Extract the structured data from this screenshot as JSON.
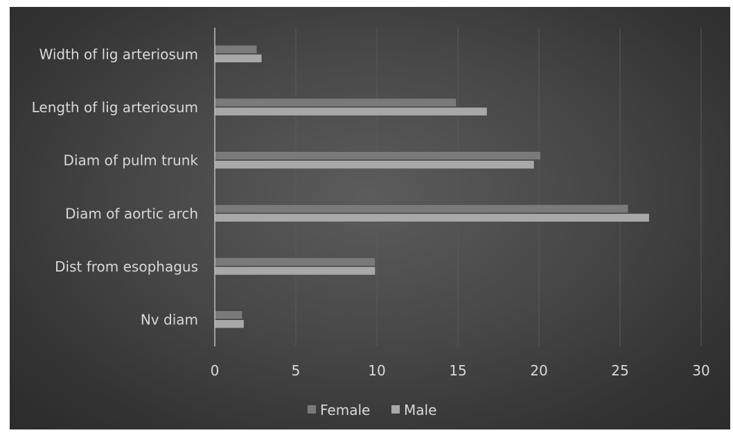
{
  "chart_data": {
    "type": "bar",
    "orientation": "horizontal",
    "categories": [
      "Nv diam",
      "Dist from esophagus",
      "Diam of aortic arch",
      "Diam of pulm trunk",
      "Length of lig arteriosum",
      "Width of lig arteriosum"
    ],
    "series": [
      {
        "name": "Female",
        "values": [
          1.7,
          9.9,
          25.5,
          20.1,
          14.9,
          2.6
        ],
        "color": "#7a7a7a"
      },
      {
        "name": "Male",
        "values": [
          1.8,
          9.9,
          26.8,
          19.7,
          16.8,
          2.9
        ],
        "color": "#a8a8a8"
      }
    ],
    "xlim": [
      0,
      30
    ],
    "xticks": [
      0,
      5,
      10,
      15,
      20,
      25,
      30
    ],
    "title": "",
    "xlabel": "",
    "ylabel": "",
    "grid": "vertical",
    "legend_position": "bottom",
    "colors": {
      "background": "#3f3f3f",
      "text": "#d9d9d9",
      "gridline": "#5a5a5a",
      "axis": "#bfbfbf"
    }
  }
}
